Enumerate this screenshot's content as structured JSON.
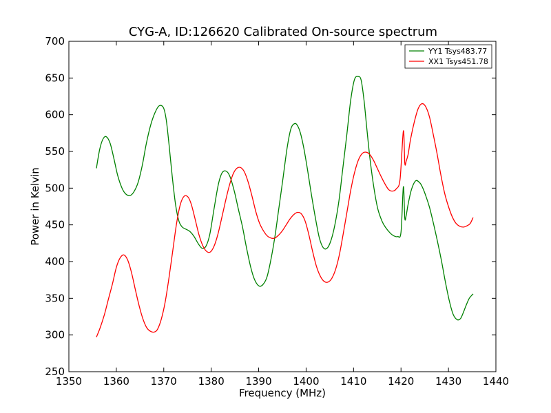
{
  "chart_data": {
    "type": "line",
    "title": "CYG-A, ID:126620 Calibrated On-source spectrum",
    "xlabel": "Frequency (MHz)",
    "ylabel": "Power in Kelvin",
    "xlim": [
      1350,
      1440
    ],
    "ylim": [
      250,
      700
    ],
    "xticks": [
      "1350",
      "1360",
      "1370",
      "1380",
      "1390",
      "1400",
      "1410",
      "1420",
      "1430",
      "1440"
    ],
    "yticks": [
      "250",
      "300",
      "350",
      "400",
      "450",
      "500",
      "550",
      "600",
      "650",
      "700"
    ],
    "grid": false,
    "legend_position": "top-right",
    "series": [
      {
        "name": "YY1 Tsys483.77",
        "color": "#008000",
        "x": [
          1355.8,
          1356.5,
          1357.2,
          1357.9,
          1358.7,
          1359.5,
          1360.3,
          1361.2,
          1362.0,
          1362.9,
          1363.7,
          1364.6,
          1365.5,
          1366.3,
          1367.2,
          1368.1,
          1369.0,
          1369.9,
          1370.5,
          1371.1,
          1371.8,
          1372.5,
          1373.2,
          1373.9,
          1374.7,
          1375.5,
          1376.4,
          1377.3,
          1378.1,
          1378.9,
          1379.7,
          1380.6,
          1381.5,
          1382.3,
          1383.2,
          1384.0,
          1384.9,
          1385.7,
          1386.6,
          1387.4,
          1388.3,
          1389.1,
          1390.0,
          1390.8,
          1391.7,
          1392.5,
          1393.4,
          1394.2,
          1395.1,
          1396.0,
          1396.8,
          1397.6,
          1398.2,
          1398.8,
          1399.5,
          1400.3,
          1401.1,
          1402.0,
          1402.8,
          1403.6,
          1404.4,
          1405.2,
          1406.0,
          1406.9,
          1407.7,
          1408.6,
          1409.4,
          1410.2,
          1411.0,
          1411.6,
          1412.2,
          1412.8,
          1413.5,
          1414.3,
          1415.1,
          1416.0,
          1416.8,
          1417.7,
          1418.5,
          1419.3,
          1420.0,
          1420.5,
          1420.8,
          1421.1,
          1421.5,
          1422.2,
          1423.1,
          1424.0,
          1424.6,
          1425.2,
          1426.0,
          1426.8,
          1427.6,
          1428.5,
          1429.3,
          1430.2,
          1431.0,
          1431.8,
          1432.5,
          1433.1,
          1433.7,
          1434.4,
          1435.2
        ],
        "values": [
          527,
          553,
          567,
          570,
          561,
          540,
          517,
          500,
          492,
          490,
          495,
          508,
          532,
          560,
          585,
          602,
          612,
          610,
          594,
          560,
          515,
          477,
          455,
          447,
          444,
          441,
          434,
          424,
          418,
          421,
          437,
          472,
          505,
          521,
          523,
          515,
          495,
          472,
          447,
          420,
          393,
          376,
          367,
          368,
          378,
          400,
          433,
          470,
          512,
          555,
          581,
          588,
          585,
          575,
          555,
          525,
          492,
          458,
          432,
          419,
          418,
          428,
          448,
          482,
          525,
          574,
          620,
          648,
          652,
          647,
          620,
          581,
          538,
          500,
          472,
          455,
          446,
          439,
          435,
          434,
          440,
          502,
          459,
          463,
          478,
          498,
          510,
          507,
          500,
          490,
          474,
          453,
          430,
          402,
          374,
          346,
          328,
          321,
          322,
          330,
          340,
          350,
          356
        ]
      },
      {
        "name": "XX1 Tsys451.78",
        "color": "#ff0000",
        "x": [
          1355.8,
          1356.6,
          1357.5,
          1358.3,
          1359.2,
          1360.0,
          1360.8,
          1361.6,
          1362.4,
          1363.2,
          1364.0,
          1364.8,
          1365.6,
          1366.4,
          1367.2,
          1368.0,
          1368.7,
          1369.5,
          1370.3,
          1371.1,
          1371.9,
          1372.7,
          1373.5,
          1374.3,
          1375.1,
          1375.8,
          1376.6,
          1377.4,
          1378.2,
          1379.0,
          1379.8,
          1380.6,
          1381.4,
          1382.2,
          1383.0,
          1383.8,
          1384.6,
          1385.4,
          1386.2,
          1387.0,
          1387.8,
          1388.6,
          1389.4,
          1390.2,
          1391.0,
          1391.8,
          1392.6,
          1393.4,
          1394.2,
          1395.0,
          1395.8,
          1396.6,
          1397.4,
          1398.2,
          1399.0,
          1399.8,
          1400.6,
          1401.4,
          1402.2,
          1403.0,
          1403.8,
          1404.6,
          1405.4,
          1406.2,
          1407.0,
          1407.8,
          1408.6,
          1409.4,
          1410.2,
          1411.0,
          1411.8,
          1412.6,
          1413.4,
          1414.2,
          1415.0,
          1415.8,
          1416.6,
          1417.4,
          1418.2,
          1419.0,
          1419.8,
          1420.5,
          1420.8,
          1421.1,
          1421.5,
          1422.0,
          1422.8,
          1423.6,
          1424.4,
          1425.2,
          1426.0,
          1426.8,
          1427.6,
          1428.4,
          1429.2,
          1430.0,
          1430.8,
          1431.6,
          1432.4,
          1433.2,
          1434.0,
          1434.6,
          1435.2
        ],
        "values": [
          297,
          310,
          328,
          348,
          370,
          392,
          405,
          409,
          402,
          385,
          362,
          340,
          322,
          310,
          305,
          304,
          308,
          322,
          345,
          378,
          415,
          452,
          478,
          489,
          488,
          478,
          458,
          437,
          422,
          414,
          413,
          421,
          437,
          459,
          482,
          503,
          519,
          527,
          528,
          522,
          508,
          489,
          468,
          452,
          442,
          435,
          432,
          432,
          436,
          442,
          450,
          458,
          464,
          467,
          465,
          455,
          436,
          413,
          393,
          380,
          373,
          372,
          377,
          389,
          409,
          437,
          467,
          497,
          521,
          538,
          547,
          549,
          546,
          538,
          527,
          516,
          506,
          498,
          496,
          499,
          512,
          578,
          534,
          537,
          546,
          566,
          590,
          608,
          615,
          611,
          597,
          573,
          547,
          518,
          493,
          475,
          461,
          452,
          448,
          447,
          449,
          452,
          460
        ]
      }
    ]
  }
}
